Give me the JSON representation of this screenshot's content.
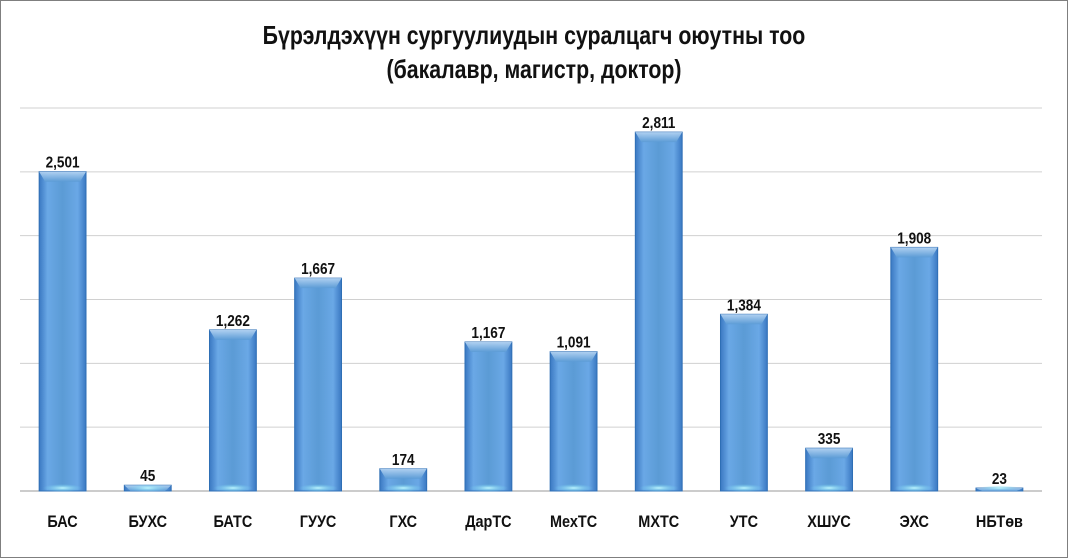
{
  "chart_data": {
    "type": "bar",
    "title": "Бүрэлдэхүүн сургуулиудын суралцагч оюутны тоо",
    "subtitle": "(бакалавр, магистр, доктор)",
    "categories": [
      "БАС",
      "БУХС",
      "БАТС",
      "ГУУС",
      "ГХС",
      "ДарТС",
      "МехТС",
      "МХТС",
      "УТС",
      "ХШУС",
      "ЭХС",
      "НБТөв"
    ],
    "values": [
      2501,
      45,
      1262,
      1667,
      174,
      1167,
      1091,
      2811,
      1384,
      335,
      1908,
      23
    ],
    "data_labels": [
      "2,501",
      "45",
      "1,262",
      "1,667",
      "174",
      "1,167",
      "1,091",
      "2,811",
      "1,384",
      "335",
      "1,908",
      "23"
    ],
    "ylim": [
      0,
      3000
    ],
    "grid": true,
    "legend": "none",
    "bar_color": "#5b9bd5"
  }
}
